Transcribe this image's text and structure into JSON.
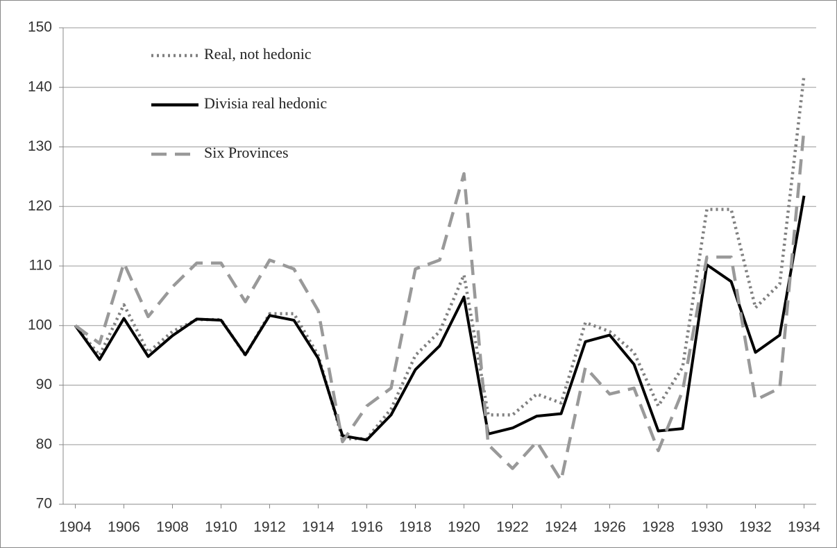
{
  "chart_data": {
    "type": "line",
    "x": [
      1904,
      1905,
      1906,
      1907,
      1908,
      1909,
      1910,
      1911,
      1912,
      1913,
      1914,
      1915,
      1916,
      1917,
      1918,
      1919,
      1920,
      1921,
      1922,
      1923,
      1924,
      1925,
      1926,
      1927,
      1928,
      1929,
      1930,
      1931,
      1932,
      1933,
      1934
    ],
    "series": [
      {
        "name": "Real, not hedonic",
        "color": "#808080",
        "style": "dotted",
        "values": [
          100,
          95,
          103.5,
          95.5,
          99,
          101,
          101,
          95,
          102,
          102,
          95,
          81,
          81,
          86,
          95,
          99,
          108.5,
          85,
          85,
          88.5,
          87,
          100.5,
          99,
          95.5,
          86.5,
          93,
          119.5,
          119.5,
          103,
          107,
          142
        ]
      },
      {
        "name": "Divisia real hedonic",
        "color": "#000000",
        "style": "solid",
        "values": [
          100,
          94.3,
          101.2,
          94.8,
          98.3,
          101.1,
          100.9,
          95.1,
          101.7,
          100.9,
          94.5,
          81.5,
          80.8,
          85,
          92.6,
          96.6,
          104.8,
          81.8,
          82.8,
          84.8,
          85.2,
          97.3,
          98.4,
          93.5,
          82.3,
          82.7,
          110.2,
          107.4,
          95.5,
          98.4,
          121.8
        ]
      },
      {
        "name": "Six Provinces",
        "color": "#999999",
        "style": "dashed",
        "values": [
          100,
          97,
          110.5,
          101.5,
          106.5,
          110.5,
          110.5,
          104,
          111,
          109.5,
          102.5,
          80.5,
          86.5,
          89.5,
          109.5,
          111,
          125.5,
          80,
          76,
          80.5,
          74,
          93,
          88.5,
          89.5,
          79,
          89,
          111.5,
          111.5,
          87.5,
          89.5,
          133
        ]
      }
    ],
    "xlim": [
      1903.5,
      1934.5
    ],
    "xticks": [
      1904,
      1906,
      1908,
      1910,
      1912,
      1914,
      1916,
      1918,
      1920,
      1922,
      1924,
      1926,
      1928,
      1930,
      1932,
      1934
    ],
    "ylim": [
      70,
      150
    ],
    "yticks": [
      70,
      80,
      90,
      100,
      110,
      120,
      130,
      140,
      150
    ],
    "grid": true,
    "legend": "upper-left"
  }
}
